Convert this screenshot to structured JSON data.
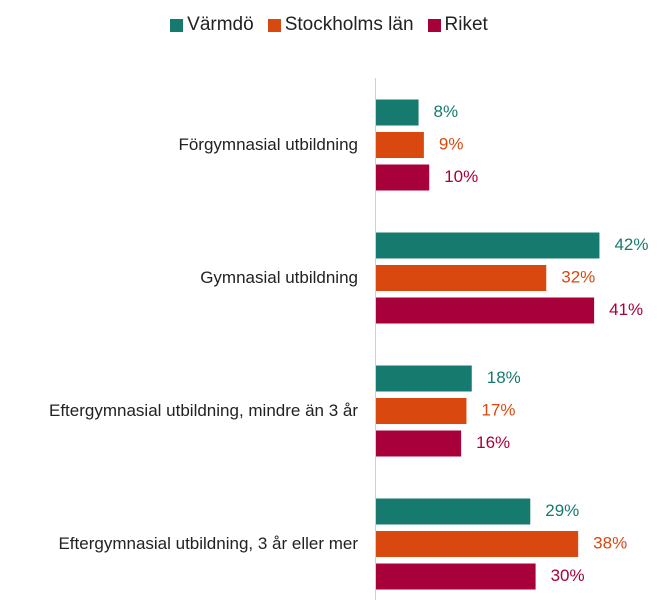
{
  "chart_data": {
    "type": "bar",
    "orientation": "horizontal",
    "categories": [
      "Förgymnasial utbildning",
      "Gymnasial utbildning",
      "Eftergymnasial utbildning, mindre än 3 år",
      "Eftergymnasial utbildning, 3 år eller mer"
    ],
    "series": [
      {
        "name": "Värmdö",
        "color": "#177a6e",
        "values": [
          8,
          42,
          18,
          29
        ],
        "value_labels": [
          "8%",
          "42%",
          "18%",
          "29%"
        ]
      },
      {
        "name": "Stockholms län",
        "color": "#d9480f",
        "values": [
          9,
          32,
          17,
          38
        ],
        "value_labels": [
          "9%",
          "32%",
          "17%",
          "38%"
        ]
      },
      {
        "name": "Riket",
        "color": "#a8003b",
        "values": [
          10,
          41,
          16,
          30
        ],
        "value_labels": [
          "10%",
          "41%",
          "16%",
          "30%"
        ]
      }
    ],
    "xlim": [
      0,
      50
    ],
    "legend": "top"
  }
}
